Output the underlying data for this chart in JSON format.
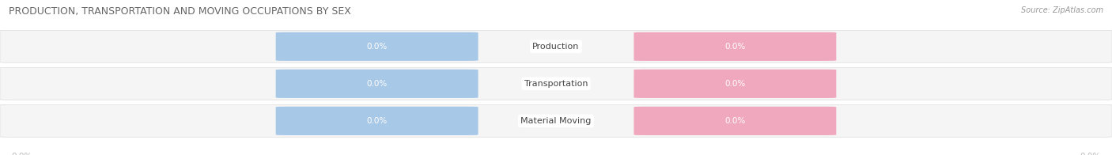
{
  "title": "PRODUCTION, TRANSPORTATION AND MOVING OCCUPATIONS BY SEX",
  "source": "Source: ZipAtlas.com",
  "categories": [
    "Production",
    "Transportation",
    "Material Moving"
  ],
  "male_values": [
    "0.0%",
    "0.0%",
    "0.0%"
  ],
  "female_values": [
    "0.0%",
    "0.0%",
    "0.0%"
  ],
  "male_color": "#a8c8e8",
  "female_color": "#f0a8be",
  "bar_bg_color": "#eeeeee",
  "row_bg_color": "#f5f5f5",
  "white_bg": "#ffffff",
  "label_text_color": "#ffffff",
  "category_text_color": "#444444",
  "title_color": "#666666",
  "source_color": "#999999",
  "axis_label_color": "#bbbbbb",
  "figsize": [
    14.06,
    1.96
  ],
  "dpi": 100
}
